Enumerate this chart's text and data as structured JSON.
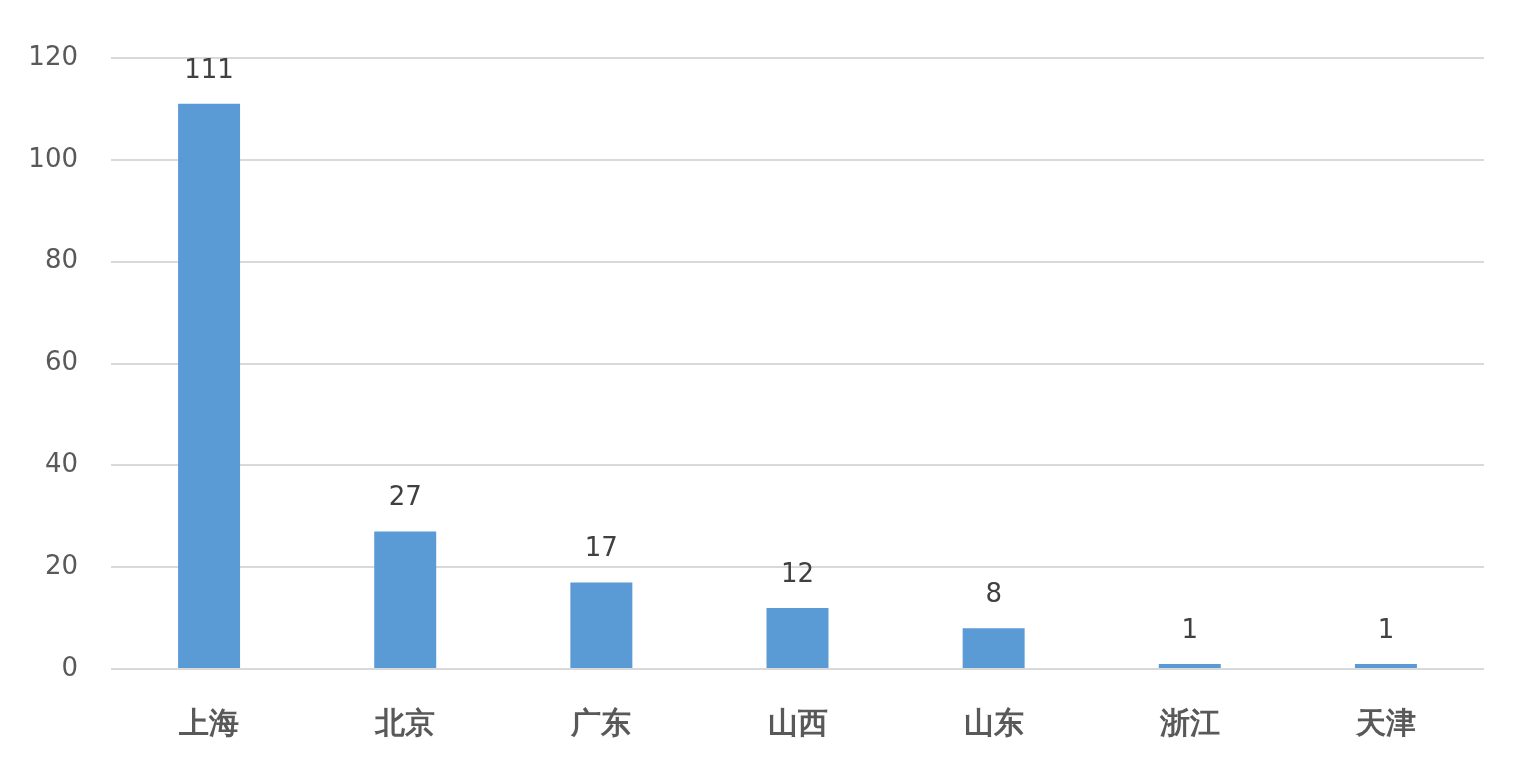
{
  "chart_data": {
    "type": "bar",
    "categories": [
      "上海",
      "北京",
      "广东",
      "山西",
      "山东",
      "浙江",
      "天津"
    ],
    "values": [
      111,
      27,
      17,
      12,
      8,
      1,
      1
    ],
    "color": "#5b9bd5",
    "ylim": [
      0,
      120
    ],
    "yticks": [
      0,
      20,
      40,
      60,
      80,
      100,
      120
    ],
    "grid": "y",
    "data_labels": true
  }
}
